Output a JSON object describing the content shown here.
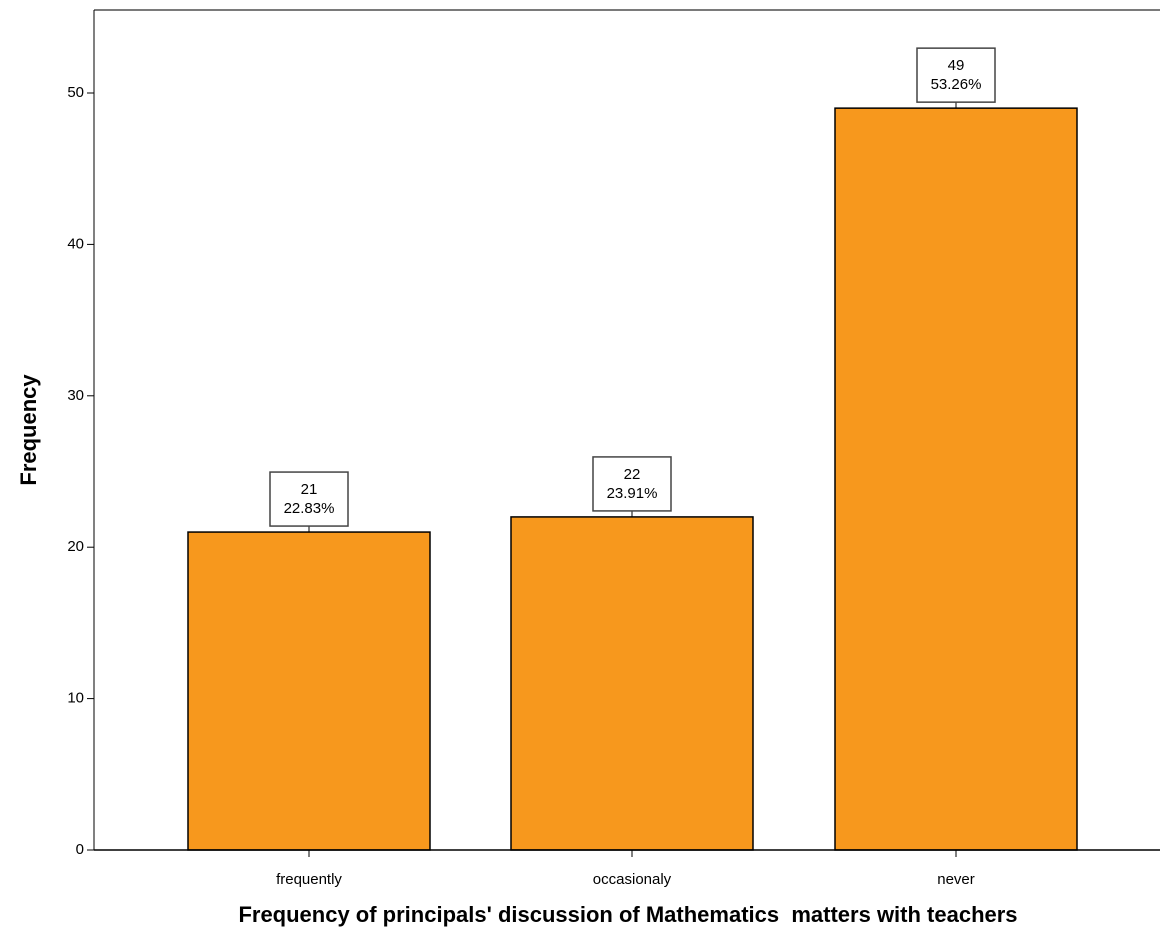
{
  "chart_data": {
    "type": "bar",
    "categories": [
      "frequently",
      "occasionaly",
      "never"
    ],
    "values": [
      21,
      22,
      49
    ],
    "percent_labels": [
      "22.83%",
      "23.91%",
      "53.26%"
    ],
    "xlabel": "Frequency of principals' discussion of Mathematics  matters with teachers",
    "ylabel": "Frequency",
    "ylim": [
      0,
      55
    ],
    "yticks": [
      0,
      10,
      20,
      30,
      40,
      50
    ],
    "grid": false,
    "legend": "none",
    "bar_color": "#F7981D",
    "bar_edge_color": "#000000"
  }
}
